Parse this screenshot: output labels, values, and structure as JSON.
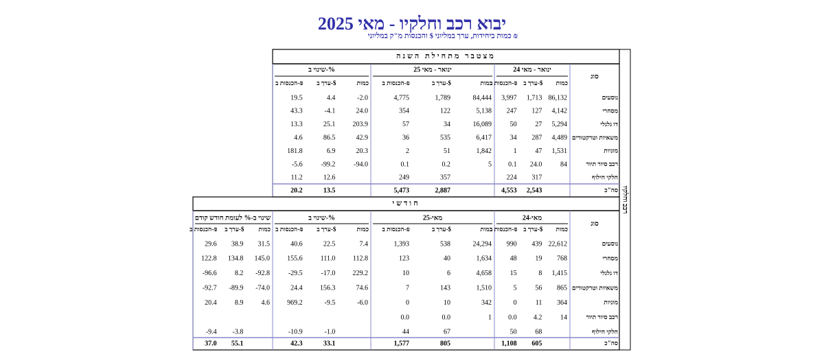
{
  "title": "יבוא רכב וחלקיו - מאי 2025",
  "subtitle": "כמות ביחידות, ערך במליוני $ והכנסות מ\"ק במליוני ₪",
  "side_label": "רכב וחלקיו",
  "ytd": {
    "header": "מצטבר מתחילת השנה",
    "type_header": "סוג",
    "groups": [
      {
        "label": "ינואר - מאי 24",
        "columns": [
          "כמות",
          "ערך ב-$",
          "הכנסות ב-₪"
        ]
      },
      {
        "label": "ינואר - מאי 25",
        "columns": [
          "כמות",
          "ערך ב-$",
          "הכנסות ב-₪"
        ]
      },
      {
        "label": "שינוי ב-%",
        "columns": [
          "כמות",
          "ערך ב-$",
          "הכנסות ב-₪"
        ]
      }
    ],
    "rows": [
      {
        "label": "נוסעים",
        "values": [
          "86,132",
          "1,713",
          "3,997",
          "84,444",
          "1,789",
          "4,775",
          "-2.0",
          "4.4",
          "19.5"
        ]
      },
      {
        "label": "מסחרי",
        "values": [
          "4,142",
          "127",
          "247",
          "5,138",
          "122",
          "354",
          "24.0",
          "-4.1",
          "43.3"
        ]
      },
      {
        "label": "דו גלגלי",
        "values": [
          "5,294",
          "27",
          "50",
          "16,089",
          "34",
          "57",
          "203.9",
          "25.1",
          "13.3"
        ]
      },
      {
        "label": "משאיות וטרקטורים",
        "values": [
          "4,489",
          "287",
          "34",
          "6,417",
          "535",
          "36",
          "42.9",
          "86.5",
          "4.6"
        ]
      },
      {
        "label": "מוניות",
        "values": [
          "1,531",
          "47",
          "1",
          "1,842",
          "51",
          "2",
          "20.3",
          "6.9",
          "181.8"
        ]
      },
      {
        "label": "רכב סיור תיור",
        "values": [
          "84",
          "24.0",
          "0.1",
          "5",
          "0.2",
          "0.1",
          "-94.0",
          "-99.2",
          "-5.6"
        ]
      },
      {
        "label": "חלקי חילוף",
        "values": [
          null,
          "317",
          "224",
          null,
          "357",
          "249",
          null,
          "12.6",
          "11.2"
        ]
      },
      {
        "label": "סה\"כ",
        "values": [
          null,
          "2,543",
          "4,553",
          null,
          "2,887",
          "5,473",
          null,
          "13.5",
          "20.2"
        ]
      }
    ]
  },
  "monthly": {
    "header": "חודשי",
    "type_header": "סוג",
    "groups": [
      {
        "label": "מאי-24",
        "columns": [
          "כמות",
          "ערך ב-$",
          "הכנסות ב-₪"
        ]
      },
      {
        "label": "מאי-25",
        "columns": [
          "כמות",
          "ערך ב-$",
          "הכנסות ב-₪"
        ]
      },
      {
        "label": "שינוי ב-%",
        "columns": [
          "כמות",
          "ערך ב-$",
          "הכנסות ב-₪"
        ]
      },
      {
        "label": "שינוי ב-% לעומת חודש קודם",
        "columns": [
          "כמות",
          "ערך ב-$",
          "הכנסות ב-₪"
        ]
      }
    ],
    "rows": [
      {
        "label": "נוסעים",
        "values": [
          "22,612",
          "439",
          "990",
          "24,294",
          "538",
          "1,393",
          "7.4",
          "22.5",
          "40.6",
          "31.5",
          "38.9",
          "29.6"
        ]
      },
      {
        "label": "מסחרי",
        "values": [
          "768",
          "19",
          "48",
          "1,634",
          "40",
          "123",
          "112.8",
          "111.0",
          "155.6",
          "145.0",
          "134.8",
          "122.8"
        ]
      },
      {
        "label": "דו גלגלי",
        "values": [
          "1,415",
          "8",
          "15",
          "4,658",
          "6",
          "10",
          "229.2",
          "-17.0",
          "-29.5",
          "-92.8",
          "8.2",
          "-96.6"
        ]
      },
      {
        "label": "משאיות וטרקטורים",
        "values": [
          "865",
          "56",
          "5",
          "1,510",
          "143",
          "7",
          "74.6",
          "156.3",
          "24.4",
          "-74.0",
          "-89.9",
          "-92.7"
        ]
      },
      {
        "label": "מוניות",
        "values": [
          "364",
          "11",
          "0",
          "342",
          "10",
          "0",
          "-6.0",
          "-9.5",
          "969.2",
          "4.6",
          "8.9",
          "20.4"
        ]
      },
      {
        "label": "רכב סיור תיור",
        "values": [
          "14",
          "4.2",
          "0.0",
          "1",
          "0.0",
          "0.0",
          null,
          null,
          null,
          null,
          null,
          null
        ]
      },
      {
        "label": "חלקי חילוף",
        "values": [
          null,
          "68",
          "50",
          null,
          "67",
          "44",
          null,
          "-1.0",
          "-10.9",
          null,
          "-3.8",
          "-9.4"
        ]
      },
      {
        "label": "סה\"כ",
        "values": [
          null,
          "605",
          "1,108",
          null,
          "805",
          "1,577",
          null,
          "33.1",
          "42.3",
          null,
          "55.1",
          "37.0"
        ]
      }
    ]
  }
}
